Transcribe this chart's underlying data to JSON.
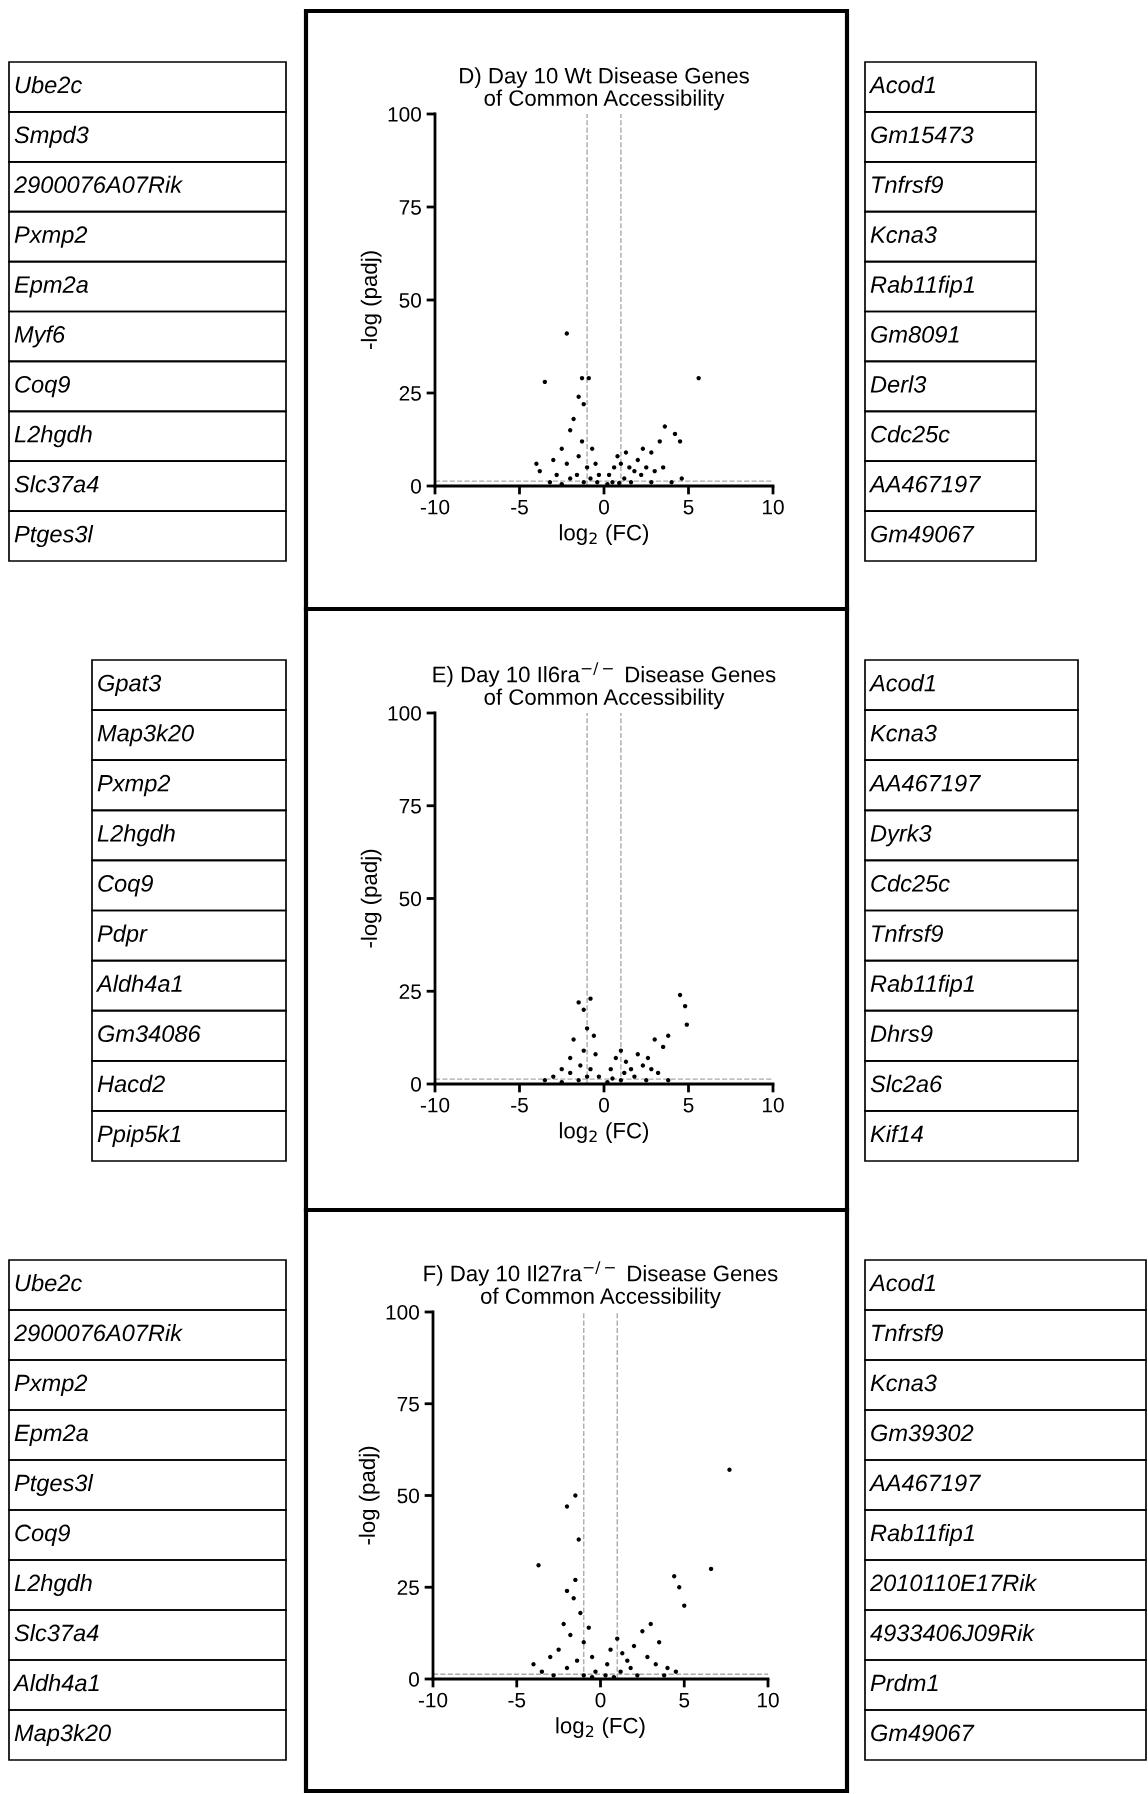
{
  "chart_data": [
    {
      "type": "scatter",
      "title": "D) Day 10 Wt Disease Genes\nof Common Accessibility",
      "xlabel": "log$_{2}$ (FC)",
      "ylabel": "-log (padj)",
      "xlim": [
        -10,
        10
      ],
      "ylim": [
        0,
        100
      ],
      "xticks": [
        -10,
        -5,
        0,
        5,
        10
      ],
      "yticks": [
        0,
        25,
        50,
        75,
        100
      ],
      "grid": false,
      "marker": "circle",
      "color": "#000000",
      "x": [
        -2.2,
        -3.5,
        -1.3,
        -0.9,
        5.6,
        4.2,
        3.6,
        3.3,
        4.5,
        2.8,
        -1.5,
        -1.2,
        -1.8,
        -2.5,
        -3,
        -4,
        -3.8,
        -2,
        -1.3,
        -0.7,
        -0.5,
        -1.5,
        -2.2,
        -2.8,
        -1,
        -0.3,
        -0.8,
        -1.6,
        -2,
        0.3,
        0.6,
        0.8,
        1,
        1.3,
        1.5,
        1.8,
        2,
        2.3,
        2.5,
        2.2,
        3,
        3.5,
        4.6,
        0.5,
        1.2,
        -0.4,
        0.2,
        -1.2,
        1.6,
        2.8,
        -3.2,
        -2.5,
        4,
        0.9
      ],
      "values": [
        41,
        28,
        29,
        29,
        29,
        14,
        16,
        12,
        12,
        9,
        24,
        22,
        18,
        10,
        7,
        6,
        4,
        15,
        12,
        10,
        6,
        8,
        6,
        3,
        5,
        3,
        2,
        3,
        2,
        3,
        5,
        8,
        6,
        9,
        5,
        4,
        7,
        10,
        5,
        3,
        4,
        5,
        2,
        1,
        2,
        1,
        0.5,
        1,
        1,
        1,
        1,
        0.5,
        1,
        0.8
      ],
      "ref_lines": [
        {
          "axis": "x",
          "value": -1,
          "color": "#aaaaaa",
          "line_style": "dashed"
        },
        {
          "axis": "x",
          "value": 1,
          "color": "#aaaaaa",
          "line_style": "dashed"
        },
        {
          "axis": "y",
          "value": 1.3,
          "color": "#aaaaaa",
          "line_style": "dashed"
        }
      ],
      "annotations": [
        "Ube2c",
        "Smpd3",
        "2900076A07Rik",
        "Pxmp2",
        "Epm2a",
        "Myf6",
        "Coq9",
        "L2hgdh",
        "Slc37a4",
        "Ptges3l",
        "Acod1",
        "Gm15473",
        "Tnfrsf9",
        "Kcna3",
        "Rab11fip1",
        "Gm8091",
        "Derl3",
        "Cdc25c",
        "AA467197",
        "Gm49067"
      ]
    },
    {
      "type": "scatter",
      "title": "E) Day 10 Il6ra$^{−/−}$ Disease Genes\nof Common Accessibility",
      "xlabel": "log$_{2}$ (FC)",
      "ylabel": "-log (padj)",
      "xlim": [
        -10,
        10
      ],
      "ylim": [
        0,
        100
      ],
      "xticks": [
        -10,
        -5,
        0,
        5,
        10
      ],
      "yticks": [
        0,
        25,
        50,
        75,
        100
      ],
      "grid": false,
      "marker": "circle",
      "color": "#000000",
      "x": [
        -1.5,
        -0.8,
        -1.2,
        4.5,
        4.8,
        4.9,
        3.8,
        3,
        3.5,
        -1,
        -1.8,
        -0.6,
        -1.2,
        -2,
        -2.5,
        -3,
        -0.5,
        -1.4,
        -0.8,
        -0.3,
        -2,
        0.4,
        0.7,
        1,
        1.3,
        1.6,
        2,
        2.3,
        2.6,
        2.8,
        3.2,
        1.8,
        1.2,
        0.5,
        -1.5,
        -3.5,
        -2.5,
        0.2,
        2.5,
        3.8,
        -1,
        1
      ],
      "values": [
        22,
        23,
        20,
        24,
        21,
        16,
        13,
        12,
        10,
        15,
        12,
        13,
        9,
        7,
        4,
        2,
        8,
        5,
        4,
        2,
        3,
        4,
        7,
        9,
        6,
        4,
        8,
        5,
        7,
        4,
        3,
        2,
        3,
        1.5,
        1,
        1,
        0.5,
        0.5,
        1,
        1,
        2,
        1
      ],
      "ref_lines": [
        {
          "axis": "x",
          "value": -1,
          "color": "#aaaaaa",
          "line_style": "dashed"
        },
        {
          "axis": "x",
          "value": 1,
          "color": "#aaaaaa",
          "line_style": "dashed"
        },
        {
          "axis": "y",
          "value": 1.3,
          "color": "#aaaaaa",
          "line_style": "dashed"
        }
      ],
      "annotations": [
        "Gpat3",
        "Map3k20",
        "Pxmp2",
        "L2hgdh",
        "Coq9",
        "Pdpr",
        "Aldh4a1",
        "Gm34086",
        "Hacd2",
        "Ppip5k1",
        "Acod1",
        "Kcna3",
        "AA467197",
        "Dyrk3",
        "Cdc25c",
        "Tnfrsf9",
        "Rab11fip1",
        "Dhrs9",
        "Slc2a6",
        "Kif14"
      ]
    },
    {
      "type": "scatter",
      "title": "F) Day 10 Il27ra$^{−/−}$ Disease Genes\nof Common Accessibility",
      "xlabel": "log$_{2}$ (FC)",
      "ylabel": "-log (padj)",
      "xlim": [
        -10,
        10
      ],
      "ylim": [
        0,
        100
      ],
      "xticks": [
        -10,
        -5,
        0,
        5,
        10
      ],
      "yticks": [
        0,
        25,
        50,
        75,
        100
      ],
      "grid": false,
      "marker": "circle",
      "color": "#000000",
      "x": [
        -1.5,
        -2,
        -1.3,
        -3.7,
        7.7,
        6.6,
        4.4,
        4.7,
        5,
        -1.5,
        -2,
        -1.6,
        -1.2,
        -2.2,
        -1.8,
        -0.7,
        -1,
        -2.5,
        -3,
        -4,
        -3.5,
        -0.5,
        -1.4,
        -2,
        -0.3,
        0.4,
        0.6,
        1,
        1.3,
        1.6,
        2,
        2.5,
        3,
        2.8,
        3.5,
        3.3,
        4,
        4.5,
        1.8,
        1.2,
        0.3,
        -1,
        -2.8,
        2.2,
        0.8,
        -0.5,
        3.8
      ],
      "values": [
        50,
        47,
        38,
        31,
        57,
        30,
        28,
        25,
        20,
        27,
        24,
        22,
        18,
        15,
        12,
        14,
        10,
        8,
        6,
        4,
        2,
        6,
        5,
        3,
        2,
        4,
        8,
        11,
        7,
        5,
        9,
        13,
        15,
        6,
        10,
        4,
        3,
        2,
        3,
        2,
        1,
        1,
        1,
        1,
        0.5,
        0.5,
        1
      ],
      "ref_lines": [
        {
          "axis": "x",
          "value": -1,
          "color": "#aaaaaa",
          "line_style": "dashed"
        },
        {
          "axis": "x",
          "value": 1,
          "color": "#aaaaaa",
          "line_style": "dashed"
        },
        {
          "axis": "y",
          "value": 1.3,
          "color": "#aaaaaa",
          "line_style": "dashed"
        }
      ],
      "annotations": [
        "Ube2c",
        "2900076A07Rik",
        "Pxmp2",
        "Epm2a",
        "Ptges3l",
        "Coq9",
        "L2hgdh",
        "Slc37a4",
        "Aldh4a1",
        "Map3k20",
        "Acod1",
        "Tnfrsf9",
        "Kcna3",
        "Gm39302",
        "AA467197",
        "Rab11fip1",
        "2010110E17Rik",
        "4933406J09Rik",
        "Prdm1",
        "Gm49067"
      ]
    }
  ]
}
